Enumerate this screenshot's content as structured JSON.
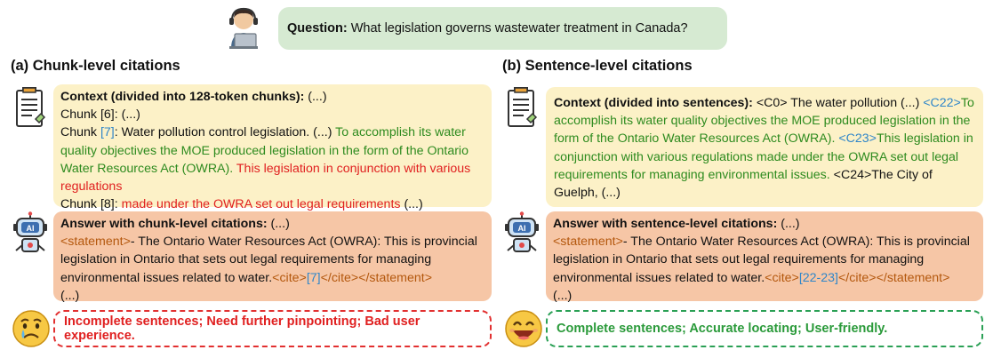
{
  "question": {
    "label": "Question:",
    "text": " What legislation governs wastewater treatment in Canada?"
  },
  "left": {
    "heading": "(a) Chunk-level citations",
    "context": {
      "title": "Context (divided into 128-token chunks):",
      "title_tail": " (...)",
      "chunk6": "Chunk [6]: (...)",
      "chunk7_prefix": "Chunk ",
      "chunk7_ref": "[7]",
      "chunk7_text": ": Water pollution control legislation. (...) ",
      "chunk7_green": "To accomplish its water quality objectives the MOE produced legislation in the form of the Ontario Water Resources Act (OWRA).",
      "chunk7_red": "  This legislation in conjunction with various regulations",
      "chunk8_prefix": "Chunk [8]: ",
      "chunk8_red": "made under the OWRA set out legal requirements",
      "chunk8_tail": " (...)"
    },
    "answer": {
      "title": "Answer with chunk-level citations:",
      "title_tail": "  (...)",
      "stmt_open": "<statement>",
      "body": "- The Ontario Water Resources Act (OWRA): This is provincial legislation in Ontario that sets out legal requirements for managing environmental issues related to water.",
      "cite_open": "<cite>",
      "cite_ref": "[7]",
      "cite_close": "</cite></statement>",
      "tail": "(...)"
    },
    "verdict": "Incomplete sentences; Need further pinpointing; Bad user experience."
  },
  "right": {
    "heading": "(b) Sentence-level citations",
    "context": {
      "title": "Context (divided into sentences):",
      "c0": "  <C0> The water pollution (...) ",
      "c22_tag": "<C22>",
      "c22_text": "To accomplish its water quality objectives the MOE produced legislation in the form of the Ontario Water Resources Act (OWRA). ",
      "c23_tag": "<C23>",
      "c23_text": "This legislation in conjunction with various regulations made under the OWRA set out legal requirements for managing environmental issues.",
      "c24": " <C24>The City of Guelph, (...)"
    },
    "answer": {
      "title": "Answer with sentence-level citations:",
      "title_tail": " (...)",
      "stmt_open": "<statement>",
      "body": "- The Ontario Water Resources Act (OWRA): This is provincial legislation in Ontario that sets out legal requirements for managing environmental issues related to water.",
      "cite_open": "<cite>",
      "cite_ref": "[22-23]",
      "cite_close": "</cite></statement>",
      "tail": "(...)"
    },
    "verdict": "Complete sentences; Accurate locating; User-friendly."
  },
  "colors": {
    "question_bg": "#d6ead2",
    "context_bg": "#fcf1c7",
    "answer_bg": "#f6c6a6",
    "citation_blue": "#2f86c9",
    "support_green": "#2e8b1f",
    "partial_red": "#e02020",
    "tag_brown": "#b4580e"
  },
  "icons": [
    "user-laptop-icon",
    "document-icon",
    "robot-ai-icon",
    "sad-face-icon",
    "happy-face-icon"
  ]
}
